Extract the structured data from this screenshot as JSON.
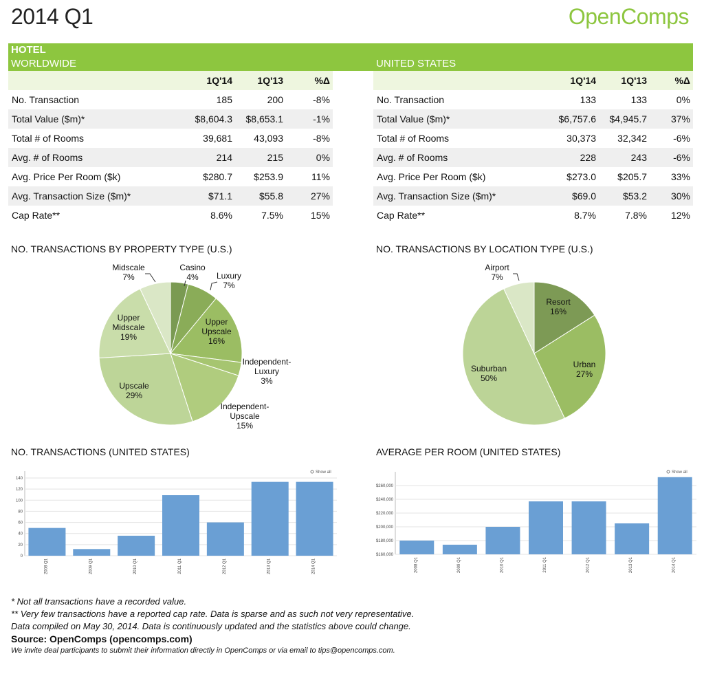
{
  "header": {
    "title": "2014 Q1",
    "brand": "OpenComps"
  },
  "band": {
    "hotel": "HOTEL",
    "worldwide": "WORLDWIDE",
    "us": "UNITED STATES"
  },
  "columns": [
    "1Q'14",
    "1Q'13",
    "%Δ"
  ],
  "worldwide": {
    "rows": [
      [
        "No. Transaction",
        "185",
        "200",
        "-8%"
      ],
      [
        "Total Value ($m)*",
        "$8,604.3",
        "$8,653.1",
        "-1%"
      ],
      [
        "Total # of Rooms",
        "39,681",
        "43,093",
        "-8%"
      ],
      [
        "Avg. # of Rooms",
        "214",
        "215",
        "0%"
      ],
      [
        "Avg. Price Per Room ($k)",
        "$280.7",
        "$253.9",
        "11%"
      ],
      [
        "Avg. Transaction Size ($m)*",
        "$71.1",
        "$55.8",
        "27%"
      ],
      [
        "Cap Rate**",
        "8.6%",
        "7.5%",
        "15%"
      ]
    ]
  },
  "united_states": {
    "rows": [
      [
        "No. Transaction",
        "133",
        "133",
        "0%"
      ],
      [
        "Total Value ($m)*",
        "$6,757.6",
        "$4,945.7",
        "37%"
      ],
      [
        "Total # of Rooms",
        "30,373",
        "32,342",
        "-6%"
      ],
      [
        "Avg. # of Rooms",
        "228",
        "243",
        "-6%"
      ],
      [
        "Avg. Price Per Room ($k)",
        "$273.0",
        "$205.7",
        "33%"
      ],
      [
        "Avg. Transaction Size ($m)*",
        "$69.0",
        "$53.2",
        "30%"
      ],
      [
        "Cap Rate**",
        "8.7%",
        "7.8%",
        "12%"
      ]
    ]
  },
  "sections": {
    "property_type": "NO. TRANSACTIONS BY PROPERTY TYPE (U.S.)",
    "location_type": "NO. TRANSACTIONS BY LOCATION TYPE (U.S.)",
    "transactions": "NO. TRANSACTIONS (UNITED STATES)",
    "per_room": "AVERAGE PER ROOM (UNITED STATES)"
  },
  "show_all_label": "Show all",
  "chart_data": [
    {
      "type": "pie",
      "title": "NO. TRANSACTIONS BY PROPERTY TYPE (U.S.)",
      "slices": [
        {
          "label": [
            "Casino"
          ],
          "value": 4,
          "pct": "4%",
          "color": "#7a9a52"
        },
        {
          "label": [
            "Luxury"
          ],
          "value": 7,
          "pct": "7%",
          "color": "#8aac58"
        },
        {
          "label": [
            "Upper",
            "Upscale"
          ],
          "value": 16,
          "pct": "16%",
          "color": "#9bbd63"
        },
        {
          "label": [
            "Independent-",
            "Luxury"
          ],
          "value": 3,
          "pct": "3%",
          "color": "#a6c570"
        },
        {
          "label": [
            "Independent-",
            "Upscale"
          ],
          "value": 15,
          "pct": "15%",
          "color": "#b0cc7e"
        },
        {
          "label": [
            "Upscale"
          ],
          "value": 29,
          "pct": "29%",
          "color": "#bdd598"
        },
        {
          "label": [
            "Upper",
            "Midscale"
          ],
          "value": 19,
          "pct": "19%",
          "color": "#c9ddaa"
        },
        {
          "label": [
            "Midscale"
          ],
          "value": 7,
          "pct": "7%",
          "color": "#dae7c6"
        }
      ]
    },
    {
      "type": "pie",
      "title": "NO. TRANSACTIONS BY LOCATION TYPE (U.S.)",
      "slices": [
        {
          "label": [
            "Resort"
          ],
          "value": 16,
          "pct": "16%",
          "color": "#7d9a55"
        },
        {
          "label": [
            "Urban"
          ],
          "value": 27,
          "pct": "27%",
          "color": "#9bbd63"
        },
        {
          "label": [
            "Suburban"
          ],
          "value": 50,
          "pct": "50%",
          "color": "#bcd497"
        },
        {
          "label": [
            "Airport"
          ],
          "value": 7,
          "pct": "7%",
          "color": "#dae7c6"
        }
      ]
    },
    {
      "type": "bar",
      "title": "NO. TRANSACTIONS (UNITED STATES)",
      "categories": [
        "2008 Q1",
        "2009 Q1",
        "2010 Q1",
        "2011 Q1",
        "2012 Q1",
        "2013 Q1",
        "2014 Q1"
      ],
      "values": [
        50,
        12,
        36,
        109,
        60,
        133,
        133
      ],
      "ylim": [
        0,
        140
      ],
      "yticks": [
        0,
        20,
        40,
        60,
        80,
        100,
        120,
        140
      ],
      "grid": true,
      "color": "#6a9fd4"
    },
    {
      "type": "bar",
      "title": "AVERAGE PER ROOM (UNITED STATES)",
      "categories": [
        "2008 Q1",
        "2009 Q1",
        "2010 Q1",
        "2011 Q1",
        "2012 Q1",
        "2013 Q1",
        "2014 Q1"
      ],
      "values": [
        180000,
        174000,
        200000,
        237000,
        237000,
        205000,
        273000
      ],
      "ylim": [
        160000,
        270000
      ],
      "yticks": [
        160000,
        180000,
        200000,
        220000,
        240000,
        260000
      ],
      "ytick_labels": [
        "$160,000",
        "$180,000",
        "$200,000",
        "$220,000",
        "$240,000",
        "$260,000"
      ],
      "grid": true,
      "color": "#6a9fd4"
    }
  ],
  "footnotes": {
    "line1": "* Not all transactions have a recorded value.",
    "line2": "** Very few transactions have a reported cap rate. Data is sparse and as such not very representative.",
    "line3": "Data compiled on May 30, 2014. Data is continuously updated and the statistics above could change.",
    "source": "Source: OpenComps (opencomps.com)",
    "invite": "We invite deal participants to submit their information directly in OpenComps or via email to tips@opencomps.com."
  }
}
